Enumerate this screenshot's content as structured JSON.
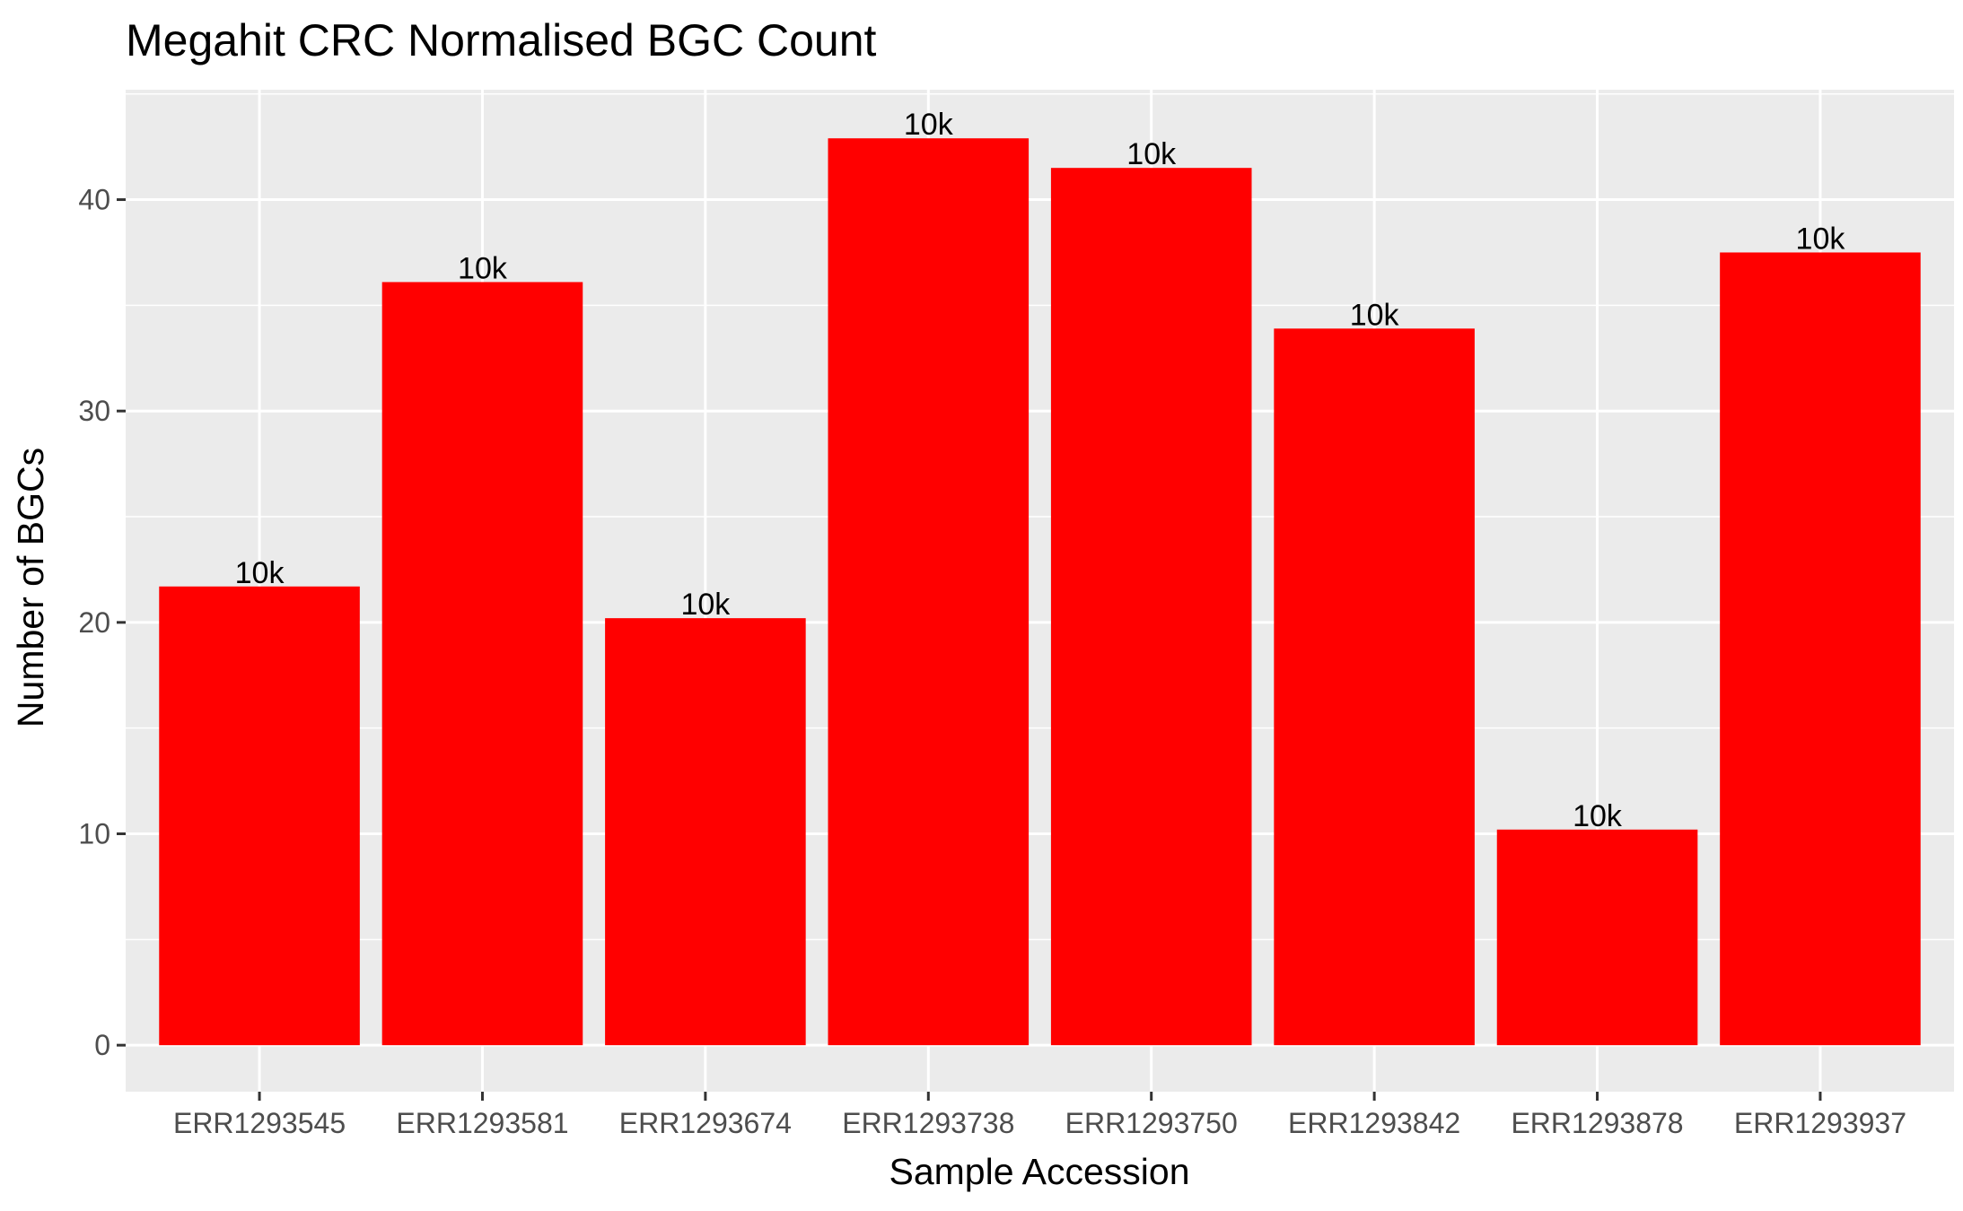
{
  "chart_data": {
    "type": "bar",
    "title": "Megahit CRC Normalised BGC Count",
    "xlabel": "Sample Accession",
    "ylabel": "Number of BGCs",
    "categories": [
      "ERR1293545",
      "ERR1293581",
      "ERR1293674",
      "ERR1293738",
      "ERR1293750",
      "ERR1293842",
      "ERR1293878",
      "ERR1293937"
    ],
    "values": [
      21.7,
      36.1,
      20.2,
      42.9,
      41.5,
      33.9,
      10.2,
      37.5
    ],
    "data_labels": [
      "10k",
      "10k",
      "10k",
      "10k",
      "10k",
      "10k",
      "10k",
      "10k"
    ],
    "yticks": [
      0,
      10,
      20,
      30,
      40
    ],
    "ylim": [
      -2.2,
      45.2
    ],
    "grid": true,
    "legend": "none",
    "colors": {
      "bar": "#ff0000",
      "panel": "#ebebeb",
      "grid": "#ffffff",
      "tick_label": "#4d4d4d",
      "tick": "#333333"
    }
  }
}
